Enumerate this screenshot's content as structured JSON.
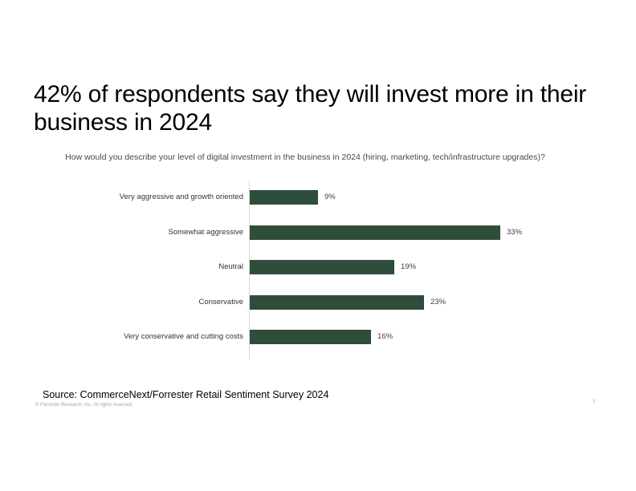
{
  "slide": {
    "title": "42% of respondents say they will invest more in their business in 2024",
    "source": "Source: CommerceNext/Forrester Retail Sentiment Survey 2024",
    "copyright": "© Forrester Research, Inc. All rights reserved.",
    "page_number": "7"
  },
  "chart_data": {
    "type": "bar",
    "orientation": "horizontal",
    "title": "How would you describe your level of digital investment in the business in 2024 (hiring, marketing, tech/infrastructure upgrades)?",
    "categories": [
      "Very aggressive and growth oriented",
      "Somewhat aggressive",
      "Neutral",
      "Conservative",
      "Very conservative and cutting costs"
    ],
    "values": [
      9,
      33,
      19,
      23,
      16
    ],
    "value_labels": [
      "9%",
      "33%",
      "19%",
      "23%",
      "16%"
    ],
    "xlim": [
      0,
      35
    ],
    "grid": false,
    "legend": false,
    "bar_color": "#2e4d3a",
    "axis_line_color": "#d9d9d9"
  }
}
